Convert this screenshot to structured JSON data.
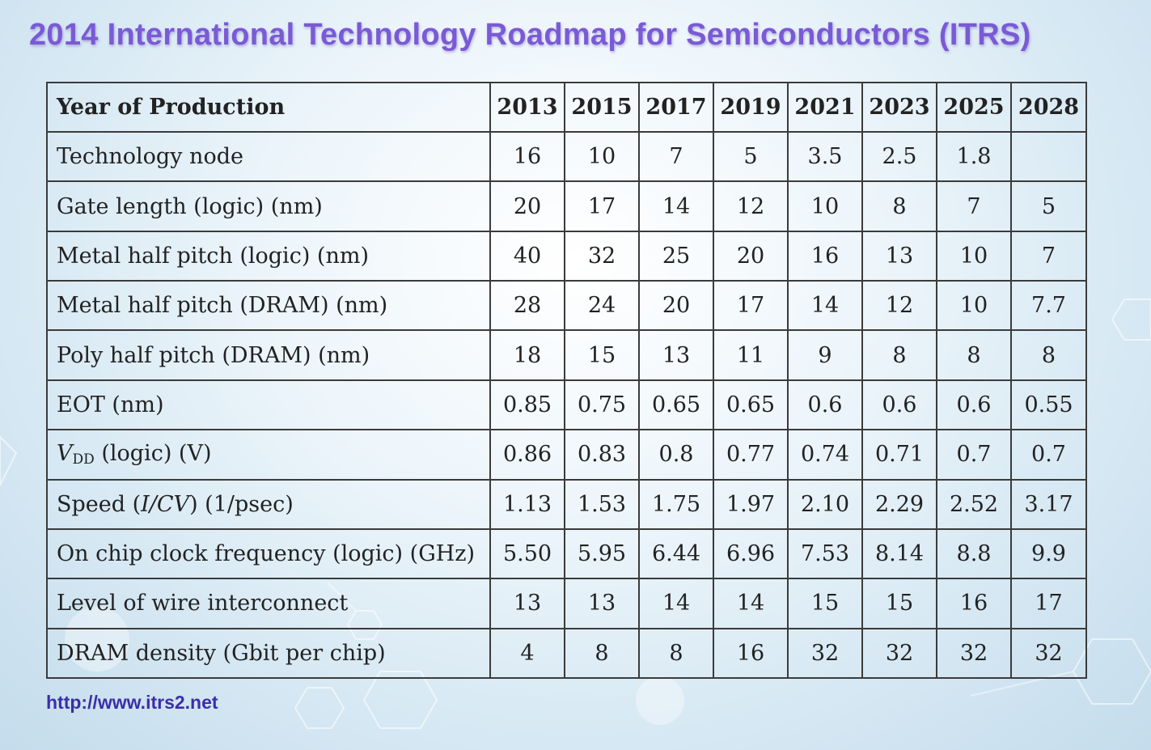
{
  "title": "2014 International Technology Roadmap for Semiconductors (ITRS)",
  "table": {
    "header_label": "Year of Production",
    "years": [
      "2013",
      "2015",
      "2017",
      "2019",
      "2021",
      "2023",
      "2025",
      "2028"
    ],
    "rows": [
      {
        "label": "Technology node",
        "values": [
          "16",
          "10",
          "7",
          "5",
          "3.5",
          "2.5",
          "1.8",
          ""
        ]
      },
      {
        "label": "Gate length (logic) (nm)",
        "values": [
          "20",
          "17",
          "14",
          "12",
          "10",
          "8",
          "7",
          "5"
        ]
      },
      {
        "label": "Metal half pitch (logic) (nm)",
        "values": [
          "40",
          "32",
          "25",
          "20",
          "16",
          "13",
          "10",
          "7"
        ]
      },
      {
        "label": "Metal half pitch (DRAM) (nm)",
        "values": [
          "28",
          "24",
          "20",
          "17",
          "14",
          "12",
          "10",
          "7.7"
        ]
      },
      {
        "label": "Poly half pitch (DRAM) (nm)",
        "values": [
          "18",
          "15",
          "13",
          "11",
          "9",
          "8",
          "8",
          "8"
        ]
      },
      {
        "label": "EOT (nm)",
        "values": [
          "0.85",
          "0.75",
          "0.65",
          "0.65",
          "0.6",
          "0.6",
          "0.6",
          "0.55"
        ]
      },
      {
        "label_main": "V",
        "label_sub": "DD",
        "label_rest": " (logic) (V)",
        "values": [
          "0.86",
          "0.83",
          "0.8",
          "0.77",
          "0.74",
          "0.71",
          "0.7",
          "0.7"
        ]
      },
      {
        "label_pre": "Speed (",
        "label_italic": "I/CV",
        "label_post": ") (1/psec)",
        "values": [
          "1.13",
          "1.53",
          "1.75",
          "1.97",
          "2.10",
          "2.29",
          "2.52",
          "3.17"
        ]
      },
      {
        "label": "On chip clock frequency (logic) (GHz)",
        "values": [
          "5.50",
          "5.95",
          "6.44",
          "6.96",
          "7.53",
          "8.14",
          "8.8",
          "9.9"
        ]
      },
      {
        "label": "Level of wire interconnect",
        "values": [
          "13",
          "13",
          "14",
          "14",
          "15",
          "15",
          "16",
          "17"
        ]
      },
      {
        "label": "DRAM density (Gbit per chip)",
        "values": [
          "4",
          "8",
          "8",
          "16",
          "32",
          "32",
          "32",
          "32"
        ]
      }
    ]
  },
  "footer": {
    "url": "http://www.itrs2.net"
  },
  "colors": {
    "title": "#7a5ad6",
    "url": "#3a2fa8",
    "border": "#3b3b3b"
  }
}
